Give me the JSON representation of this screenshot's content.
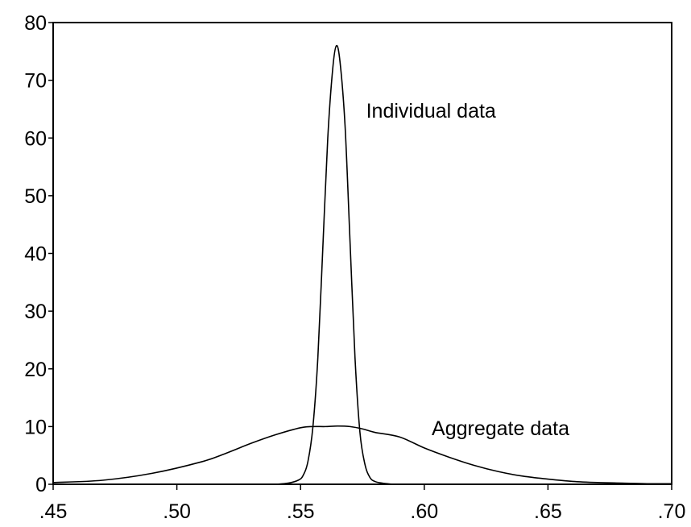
{
  "chart_data": {
    "type": "line",
    "title": "",
    "xlabel": "",
    "ylabel": "",
    "xlim": [
      0.45,
      0.7
    ],
    "ylim": [
      0,
      80
    ],
    "x_ticks": [
      0.45,
      0.5,
      0.55,
      0.6,
      0.65,
      0.7
    ],
    "x_tick_labels": [
      ".45",
      ".50",
      ".55",
      ".60",
      ".65",
      ".70"
    ],
    "y_ticks": [
      0,
      10,
      20,
      30,
      40,
      50,
      60,
      70,
      80
    ],
    "y_tick_labels": [
      "0",
      "10",
      "20",
      "30",
      "40",
      "50",
      "60",
      "70",
      "80"
    ],
    "grid": false,
    "legend": "none",
    "series": [
      {
        "name": "Individual data",
        "x": [
          0.54,
          0.545,
          0.549,
          0.551,
          0.553,
          0.555,
          0.557,
          0.559,
          0.561,
          0.563,
          0.5645,
          0.566,
          0.568,
          0.57,
          0.572,
          0.574,
          0.576,
          0.578,
          0.58,
          0.583,
          0.587
        ],
        "y": [
          0.0,
          0.2,
          0.7,
          1.5,
          4.0,
          10.0,
          22.0,
          41.0,
          60.0,
          72.0,
          76.0,
          73.0,
          62.0,
          42.0,
          22.0,
          9.0,
          3.5,
          1.2,
          0.5,
          0.2,
          0.0
        ]
      },
      {
        "name": "Aggregate data",
        "x": [
          0.45,
          0.47,
          0.49,
          0.51,
          0.52,
          0.53,
          0.54,
          0.55,
          0.555,
          0.56,
          0.565,
          0.57,
          0.575,
          0.58,
          0.59,
          0.6,
          0.61,
          0.62,
          0.63,
          0.64,
          0.65,
          0.66,
          0.67,
          0.68,
          0.69,
          0.7
        ],
        "y": [
          0.3,
          0.7,
          1.9,
          3.9,
          5.4,
          7.1,
          8.6,
          9.8,
          10.0,
          10.0,
          10.1,
          10.0,
          9.6,
          9.0,
          8.2,
          6.3,
          4.7,
          3.3,
          2.2,
          1.4,
          0.9,
          0.5,
          0.3,
          0.2,
          0.1,
          0.1
        ]
      }
    ],
    "annotations": [
      {
        "text": "Individual data",
        "x": 0.5765,
        "y": 63.5
      },
      {
        "text": "Aggregate data",
        "x": 0.603,
        "y": 8.5
      }
    ]
  }
}
